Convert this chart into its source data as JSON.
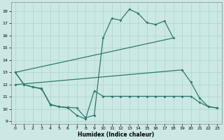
{
  "xlabel": "Humidex (Indice chaleur)",
  "bg_color": "#cce8e4",
  "grid_color": "#aad4cf",
  "line_color": "#2d7a6e",
  "xlim": [
    -0.5,
    23.5
  ],
  "ylim": [
    8.8,
    18.7
  ],
  "yticks": [
    9,
    10,
    11,
    12,
    13,
    14,
    15,
    16,
    17,
    18
  ],
  "xticks": [
    0,
    1,
    2,
    3,
    4,
    5,
    6,
    7,
    8,
    9,
    10,
    11,
    12,
    13,
    14,
    15,
    16,
    17,
    18,
    19,
    20,
    21,
    22,
    23
  ],
  "line1_x": [
    0,
    1,
    2,
    3,
    4,
    5,
    6,
    7,
    8,
    9,
    10,
    11,
    12,
    13,
    14,
    15,
    16,
    17,
    18
  ],
  "line1_y": [
    13,
    12,
    11.8,
    11.7,
    10.4,
    10.2,
    10.15,
    10.1,
    9.3,
    9.5,
    15.8,
    17.4,
    17.25,
    18.15,
    17.8,
    17.05,
    16.9,
    17.2,
    15.8
  ],
  "line2_x": [
    0,
    1,
    2,
    3,
    4,
    5,
    6,
    7,
    8,
    9,
    10,
    11,
    12,
    13,
    14,
    15,
    16,
    17,
    18,
    19,
    20,
    21,
    22,
    23
  ],
  "line2_y": [
    13,
    12,
    11.8,
    11.65,
    10.35,
    10.2,
    10.1,
    9.5,
    9.2,
    11.5,
    11.05,
    11.05,
    11.05,
    11.05,
    11.05,
    11.05,
    11.05,
    11.05,
    11.05,
    11.05,
    11.05,
    10.55,
    10.2,
    10.1
  ],
  "line3_x": [
    0,
    18
  ],
  "line3_y": [
    13,
    15.8
  ],
  "line4_x": [
    0,
    19,
    20,
    21,
    22,
    23
  ],
  "line4_y": [
    12,
    13.2,
    12.2,
    10.9,
    10.2,
    10.1
  ]
}
